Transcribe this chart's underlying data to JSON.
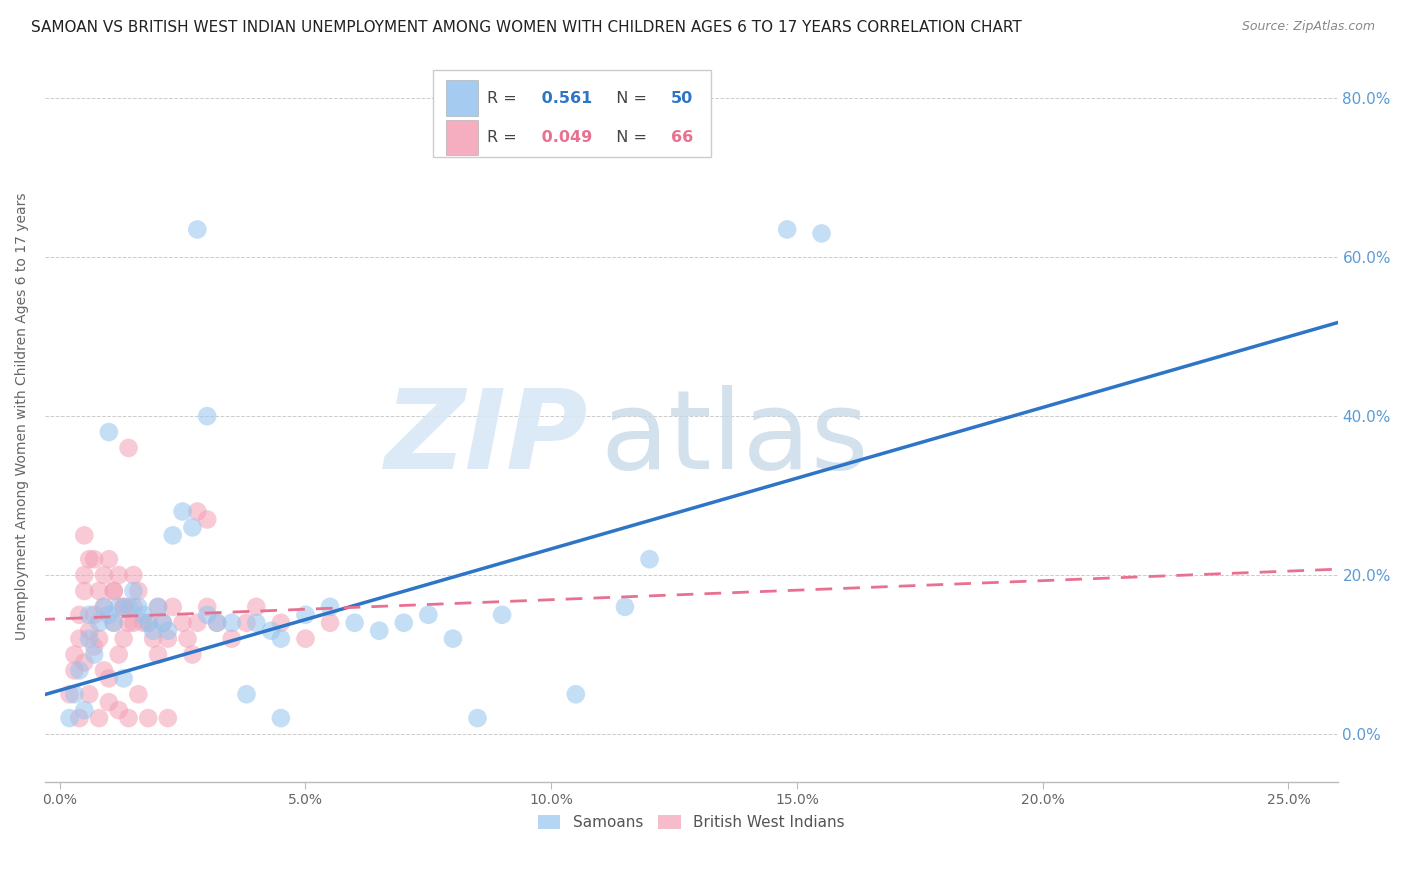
{
  "title": "SAMOAN VS BRITISH WEST INDIAN UNEMPLOYMENT AMONG WOMEN WITH CHILDREN AGES 6 TO 17 YEARS CORRELATION CHART",
  "source": "Source: ZipAtlas.com",
  "ylabel": "Unemployment Among Women with Children Ages 6 to 17 years",
  "xlabel_ticks": [
    "0.0%",
    "5.0%",
    "10.0%",
    "15.0%",
    "20.0%",
    "25.0%"
  ],
  "xlabel_vals": [
    0.0,
    5.0,
    10.0,
    15.0,
    20.0,
    25.0
  ],
  "ytick_vals": [
    0.0,
    20.0,
    40.0,
    60.0,
    80.0
  ],
  "ytick_labels": [
    "0.0%",
    "20.0%",
    "40.0%",
    "60.0%",
    "80.0%"
  ],
  "xlim": [
    -0.3,
    26.0
  ],
  "ylim": [
    -6.0,
    86.0
  ],
  "watermark_zip": "ZIP",
  "watermark_atlas": "atlas",
  "samoans_color": "#95C4EE",
  "bwi_color": "#F4A0B5",
  "trendline_samoan_color": "#2E75C8",
  "trendline_bwi_color": "#E87090",
  "R_samoan": 0.561,
  "N_samoan": 50,
  "R_bwi": 0.049,
  "N_bwi": 66,
  "background_color": "#FFFFFF",
  "grid_color": "#CCCCCC",
  "title_fontsize": 11,
  "source_fontsize": 9,
  "ylabel_fontsize": 10,
  "axis_label_color": "#666666",
  "tick_color_right": "#5B9BD5",
  "tick_color_bottom": "#666666",
  "trendline_s_x0": 0.0,
  "trendline_s_y0": 5.5,
  "trendline_s_x1": 25.0,
  "trendline_s_y1": 50.0,
  "trendline_b_x0": 0.0,
  "trendline_b_y0": 14.5,
  "trendline_b_x1": 25.0,
  "trendline_b_y1": 20.5,
  "samoans_x": [
    0.2,
    0.3,
    0.4,
    0.5,
    0.6,
    0.6,
    0.7,
    0.8,
    0.9,
    1.0,
    1.1,
    1.2,
    1.3,
    1.4,
    1.5,
    1.6,
    1.7,
    1.8,
    1.9,
    2.0,
    2.1,
    2.2,
    2.3,
    2.5,
    2.7,
    3.0,
    3.2,
    3.5,
    3.8,
    4.0,
    4.3,
    4.5,
    5.0,
    5.5,
    6.0,
    6.5,
    7.0,
    7.5,
    8.0,
    9.0,
    10.5,
    11.5,
    3.0,
    2.8,
    1.0,
    14.8,
    15.5,
    12.0,
    4.5,
    8.5
  ],
  "samoans_y": [
    2.0,
    5.0,
    8.0,
    3.0,
    12.0,
    15.0,
    10.0,
    14.0,
    16.0,
    15.0,
    14.0,
    16.0,
    7.0,
    16.0,
    18.0,
    16.0,
    15.0,
    14.0,
    13.0,
    16.0,
    14.0,
    13.0,
    25.0,
    28.0,
    26.0,
    15.0,
    14.0,
    14.0,
    5.0,
    14.0,
    13.0,
    12.0,
    15.0,
    16.0,
    14.0,
    13.0,
    14.0,
    15.0,
    12.0,
    15.0,
    5.0,
    16.0,
    40.0,
    63.5,
    38.0,
    63.5,
    63.0,
    22.0,
    2.0,
    2.0
  ],
  "bwi_x": [
    0.2,
    0.3,
    0.3,
    0.4,
    0.4,
    0.5,
    0.5,
    0.5,
    0.6,
    0.6,
    0.7,
    0.7,
    0.8,
    0.8,
    0.9,
    0.9,
    1.0,
    1.0,
    1.1,
    1.1,
    1.2,
    1.2,
    1.3,
    1.3,
    1.4,
    1.5,
    1.5,
    1.6,
    1.7,
    1.8,
    1.9,
    2.0,
    2.0,
    2.1,
    2.2,
    2.3,
    2.5,
    2.6,
    2.7,
    2.8,
    3.0,
    3.2,
    3.5,
    3.8,
    4.0,
    4.5,
    5.0,
    5.5,
    3.0,
    2.8,
    1.4,
    0.5,
    0.7,
    0.9,
    1.1,
    1.3,
    1.5,
    0.6,
    0.8,
    1.0,
    1.2,
    1.4,
    1.8,
    2.2,
    0.4,
    1.6
  ],
  "bwi_y": [
    5.0,
    8.0,
    10.0,
    12.0,
    15.0,
    18.0,
    20.0,
    9.0,
    13.0,
    22.0,
    15.0,
    11.0,
    12.0,
    18.0,
    8.0,
    16.0,
    7.0,
    22.0,
    14.0,
    18.0,
    10.0,
    20.0,
    16.0,
    12.0,
    14.0,
    16.0,
    20.0,
    18.0,
    14.0,
    14.0,
    12.0,
    10.0,
    16.0,
    14.0,
    12.0,
    16.0,
    14.0,
    12.0,
    10.0,
    14.0,
    16.0,
    14.0,
    12.0,
    14.0,
    16.0,
    14.0,
    12.0,
    14.0,
    27.0,
    28.0,
    36.0,
    25.0,
    22.0,
    20.0,
    18.0,
    16.0,
    14.0,
    5.0,
    2.0,
    4.0,
    3.0,
    2.0,
    2.0,
    2.0,
    2.0,
    5.0
  ]
}
